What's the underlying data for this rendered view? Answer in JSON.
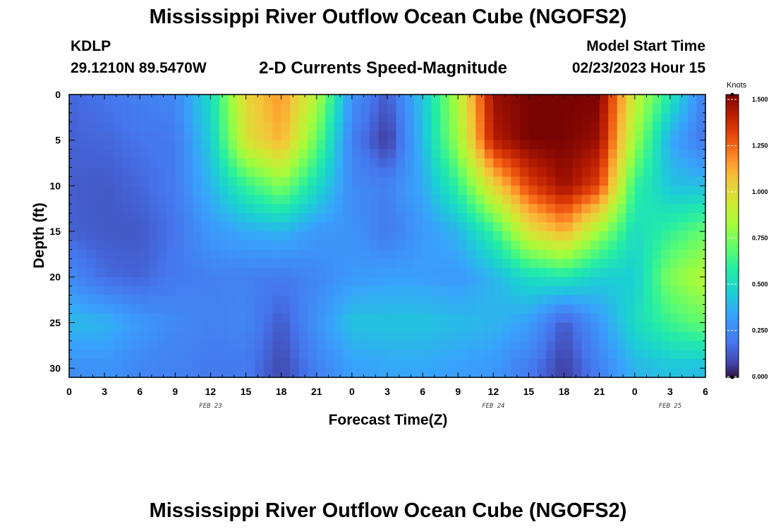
{
  "header": {
    "title": "Mississippi River Outflow Ocean Cube (NGOFS2)",
    "station": "KDLP",
    "coords": "29.1210N  89.5470W",
    "subtitle": "2-D Currents Speed-Magnitude",
    "start_label": "Model Start Time",
    "start_value": "02/23/2023 Hour 15"
  },
  "footer": {
    "title": "Mississippi River Outflow Ocean Cube (NGOFS2)"
  },
  "chart_data": {
    "type": "heatmap",
    "title": "Mississippi River Outflow Ocean Cube (NGOFS2)",
    "subtitle": "2-D Currents Speed-Magnitude",
    "xlabel": "Forecast Time(Z)",
    "ylabel": "Depth (ft)",
    "x_unit": "hours since 02/23/2023 00Z",
    "xlim": [
      0,
      54
    ],
    "ylim": [
      0,
      31
    ],
    "y_inverted": true,
    "x_ticks": [
      0,
      3,
      6,
      9,
      12,
      15,
      18,
      21,
      24,
      27,
      30,
      33,
      36,
      39,
      42,
      45,
      48,
      51,
      54
    ],
    "x_tick_labels": [
      "0",
      "3",
      "6",
      "9",
      "12",
      "15",
      "18",
      "21",
      "0",
      "3",
      "6",
      "9",
      "12",
      "15",
      "18",
      "21",
      "0",
      "3",
      "6"
    ],
    "y_ticks": [
      0,
      5,
      10,
      15,
      20,
      25,
      30
    ],
    "y_tick_labels": [
      "0",
      "5",
      "10",
      "15",
      "20",
      "25",
      "30"
    ],
    "day_labels": [
      {
        "x": 12,
        "text": "FEB 23"
      },
      {
        "x": 36,
        "text": "FEB 24"
      },
      {
        "x": 51,
        "text": "FEB 25"
      }
    ],
    "colorbar": {
      "title": "Knots",
      "min": 0,
      "max": 1.5,
      "ticks": [
        0,
        0.25,
        0.5,
        0.75,
        1.0,
        1.25,
        1.5
      ],
      "tick_labels": [
        "0.000",
        "0.250",
        "0.500",
        "0.750",
        "1.000",
        "1.250",
        "1.500"
      ],
      "colormap": "turbo"
    },
    "grid": false,
    "depths": [
      0,
      5,
      10,
      15,
      20,
      25,
      30
    ],
    "times": [
      0,
      3,
      6,
      9,
      12,
      15,
      18,
      21,
      24,
      27,
      30,
      33,
      36,
      39,
      42,
      45,
      48,
      51,
      54
    ],
    "values": [
      [
        0.15,
        0.18,
        0.22,
        0.24,
        0.5,
        1.0,
        1.15,
        0.85,
        0.28,
        0.12,
        0.42,
        0.85,
        1.45,
        1.5,
        1.5,
        1.5,
        0.9,
        0.55,
        0.2
      ],
      [
        0.14,
        0.15,
        0.18,
        0.2,
        0.45,
        0.95,
        1.1,
        0.7,
        0.22,
        0.05,
        0.4,
        0.8,
        1.4,
        1.5,
        1.5,
        1.45,
        0.8,
        0.35,
        0.18
      ],
      [
        0.13,
        0.12,
        0.15,
        0.2,
        0.38,
        0.6,
        0.75,
        0.5,
        0.25,
        0.22,
        0.35,
        0.6,
        1.0,
        1.3,
        1.45,
        1.3,
        0.6,
        0.42,
        0.4
      ],
      [
        0.14,
        0.12,
        0.12,
        0.18,
        0.3,
        0.35,
        0.38,
        0.3,
        0.28,
        0.2,
        0.3,
        0.38,
        0.6,
        0.95,
        1.1,
        0.8,
        0.5,
        0.6,
        0.7
      ],
      [
        0.25,
        0.16,
        0.14,
        0.2,
        0.22,
        0.22,
        0.2,
        0.24,
        0.3,
        0.32,
        0.32,
        0.3,
        0.38,
        0.5,
        0.55,
        0.45,
        0.45,
        0.75,
        0.85
      ],
      [
        0.4,
        0.38,
        0.3,
        0.25,
        0.22,
        0.24,
        0.12,
        0.28,
        0.42,
        0.42,
        0.42,
        0.4,
        0.38,
        0.32,
        0.12,
        0.3,
        0.5,
        0.62,
        0.7
      ],
      [
        0.26,
        0.28,
        0.24,
        0.22,
        0.2,
        0.2,
        0.08,
        0.22,
        0.32,
        0.34,
        0.34,
        0.32,
        0.3,
        0.2,
        0.06,
        0.22,
        0.38,
        0.42,
        0.4
      ]
    ]
  }
}
